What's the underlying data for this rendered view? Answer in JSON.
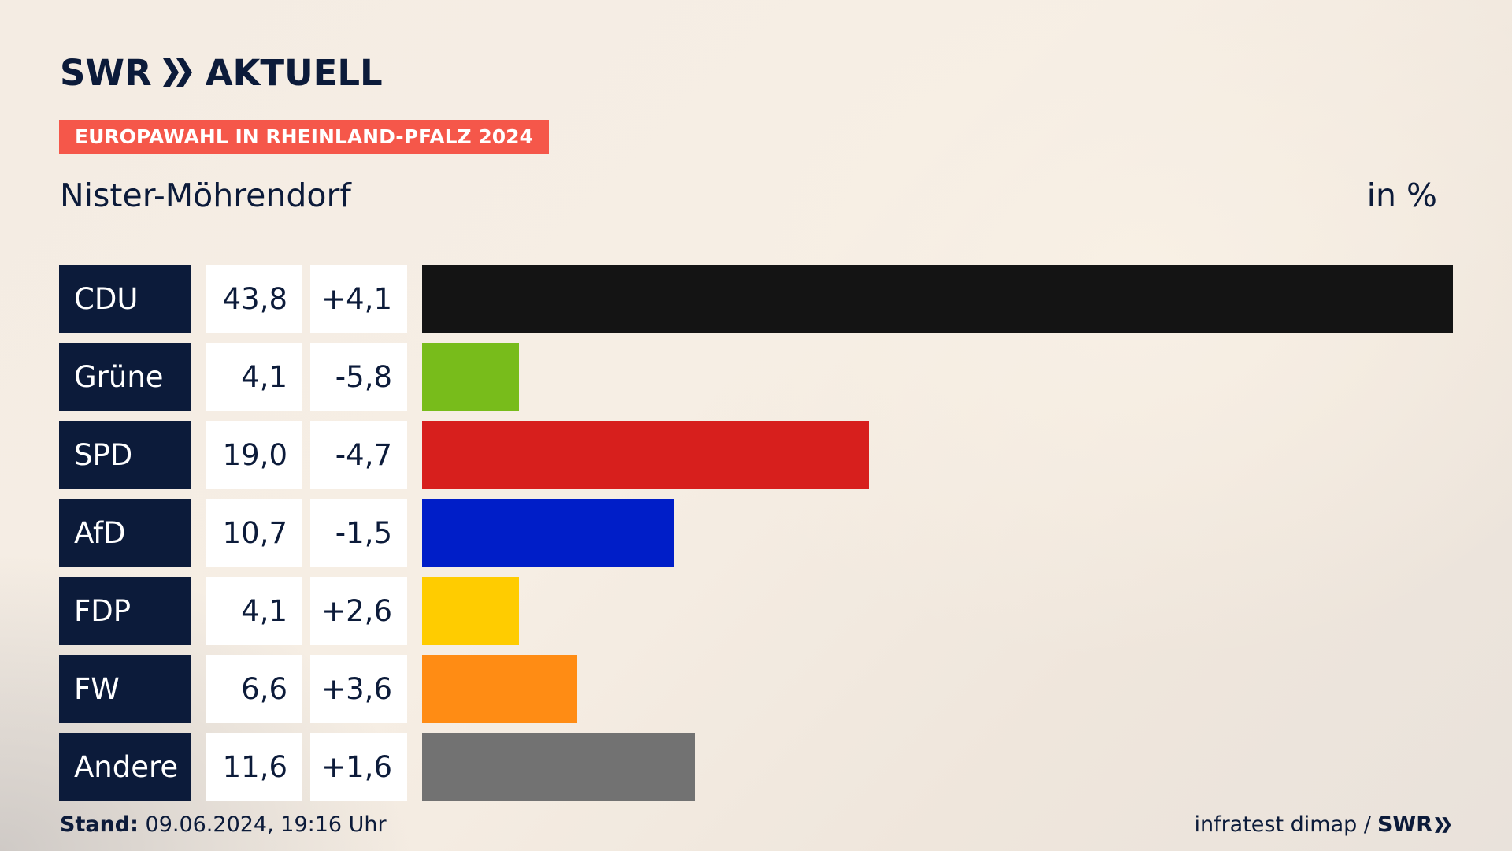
{
  "brand": {
    "name": "SWR",
    "section": "AKTUELL"
  },
  "badge": "EUROPAWAHL IN RHEINLAND-PFALZ 2024",
  "place": "Nister-Möhrendorf",
  "unit": "in %",
  "chart_data": {
    "type": "bar",
    "orientation": "horizontal",
    "title": "Europawahl in Rheinland-Pfalz 2024 – Nister-Möhrendorf",
    "unit": "in %",
    "rows": [
      {
        "party": "CDU",
        "share": 43.8,
        "share_label": "43,8",
        "diff_label": "+4,1",
        "color": "#141414"
      },
      {
        "party": "Grüne",
        "share": 4.1,
        "share_label": "4,1",
        "diff_label": "-5,8",
        "color": "#78bc1b"
      },
      {
        "party": "SPD",
        "share": 19.0,
        "share_label": "19,0",
        "diff_label": "-4,7",
        "color": "#d71f1d"
      },
      {
        "party": "AfD",
        "share": 10.7,
        "share_label": "10,7",
        "diff_label": "-1,5",
        "color": "#001ec8"
      },
      {
        "party": "FDP",
        "share": 4.1,
        "share_label": "4,1",
        "diff_label": "+2,6",
        "color": "#ffcc00"
      },
      {
        "party": "FW",
        "share": 6.6,
        "share_label": "6,6",
        "diff_label": "+3,6",
        "color": "#ff8c14"
      },
      {
        "party": "Andere",
        "share": 11.6,
        "share_label": "11,6",
        "diff_label": "+1,6",
        "color": "#727272"
      }
    ],
    "xlim": [
      0,
      43.8
    ]
  },
  "footer": {
    "stand_label": "Stand:",
    "stand_value": "09.06.2024, 19:16 Uhr",
    "source": "infratest dimap /",
    "source_brand": "SWR"
  }
}
